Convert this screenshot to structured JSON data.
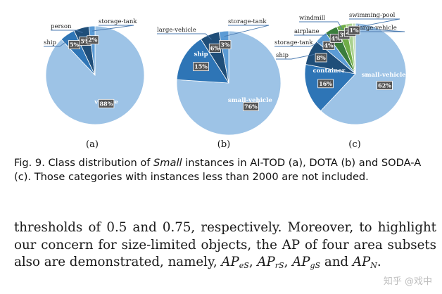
{
  "chart_data": [
    {
      "type": "pie",
      "subcaption": "(a)",
      "slices": [
        {
          "name": "vehicle",
          "value": 88,
          "label": "88%",
          "color": "#9dc3e6"
        },
        {
          "name": "ship",
          "value": 5,
          "label": "5%",
          "color": "#2e75b6"
        },
        {
          "name": "person",
          "value": 5,
          "label": "5%",
          "color": "#1f4e79"
        },
        {
          "name": "storage-tank",
          "value": 2,
          "label": "2%",
          "color": "#5b9bd5"
        }
      ]
    },
    {
      "type": "pie",
      "subcaption": "(b)",
      "slices": [
        {
          "name": "small-vehicle",
          "value": 76,
          "label": "76%",
          "color": "#9dc3e6"
        },
        {
          "name": "ship",
          "value": 15,
          "label": "15%",
          "color": "#2e75b6"
        },
        {
          "name": "large-vehicle",
          "value": 6,
          "label": "6%",
          "color": "#1f4e79"
        },
        {
          "name": "storage-tank",
          "value": 3,
          "label": "3%",
          "color": "#5b9bd5"
        }
      ]
    },
    {
      "type": "pie",
      "subcaption": "(c)",
      "slices": [
        {
          "name": "small-vehicle",
          "value": 62,
          "label": "62%",
          "color": "#9dc3e6"
        },
        {
          "name": "container",
          "value": 16,
          "label": "16%",
          "color": "#2e75b6"
        },
        {
          "name": "ship",
          "value": 8,
          "label": "8%",
          "color": "#1f4e79"
        },
        {
          "name": "storage-tank",
          "value": 4,
          "label": "4%",
          "color": "#5b9bd5"
        },
        {
          "name": "airplane",
          "value": 4,
          "label": "4%",
          "color": "#3b7d3c"
        },
        {
          "name": "windmill",
          "value": 3,
          "label": "3%",
          "color": "#70ad47"
        },
        {
          "name": "swimming-pool",
          "value": 2,
          "label": "2%",
          "color": "#a9d18e"
        },
        {
          "name": "large-vehicle",
          "value": 1,
          "label": "1%",
          "color": "#c5e0b4"
        }
      ]
    }
  ],
  "caption": {
    "prefix": "Fig. 9. Class distribution of ",
    "emph": "Small",
    "rest": " instances in AI-TOD (a), DOTA (b) and SODA-A (c). Those categories with instances less than 2000 are not included."
  },
  "body": {
    "text1": "thresholds of 0.5 and 0.75, respectively. Moreover, to highlight our concern for size-limited objects, the AP of four area subsets also are demonstrated, namely, ",
    "ap": "AP",
    "sub_es": "eS",
    "sub_rs": "rS",
    "sub_gs": "gS",
    "sub_n": "N",
    "comma": ", ",
    "and": " and ",
    "period": "."
  },
  "watermark": "知乎 @戏中"
}
